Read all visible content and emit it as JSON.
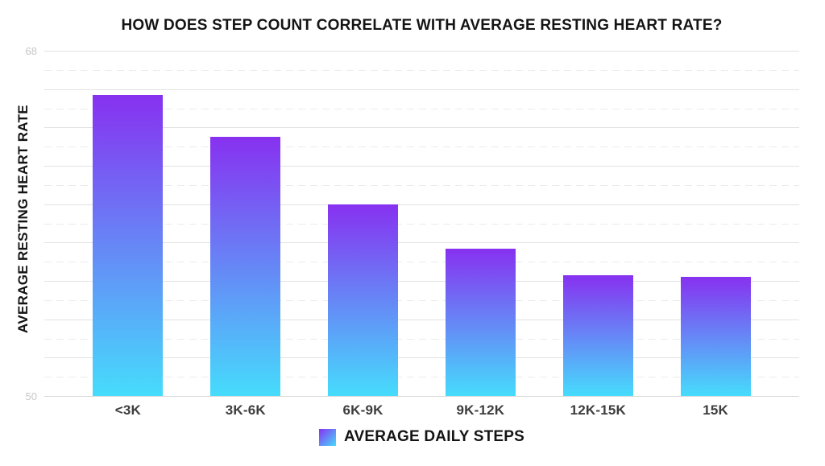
{
  "page": {
    "background": "#ffffff"
  },
  "header": {
    "title": "HOW DOES STEP COUNT CORRELATE WITH AVERAGE RESTING HEART RATE?"
  },
  "y_axis": {
    "label": "AVERAGE RESTING HEART RATE",
    "top_tick": "68",
    "bottom_tick": "50"
  },
  "legend": {
    "label": "AVERAGE DAILY STEPS",
    "swatch": "purple-to-cyan gradient square"
  },
  "colors": {
    "bar_gradient_top": "#8731f0",
    "bar_gradient_bottom": "#46dcfc",
    "grid_solid": "#e2e2e2",
    "grid_dashed": "#ebebeb",
    "baseline": "#d9d9d9",
    "y_tick_label": "#c6c6c6",
    "x_label": "#3d3d3d",
    "title_text": "#141414",
    "background": "#ffffff"
  },
  "chart_data": {
    "type": "bar",
    "title": "HOW DOES STEP COUNT CORRELATE WITH AVERAGE RESTING HEART RATE?",
    "categories": [
      "<3K",
      "3K-6K",
      "6K-9K",
      "9K-12K",
      "12K-15K",
      "15K"
    ],
    "values": [
      65.7,
      63.5,
      60,
      57.7,
      56.3,
      56.2
    ],
    "series_name": "AVERAGE DAILY STEPS",
    "xlabel": "AVERAGE DAILY STEPS",
    "ylabel": "AVERAGE RESTING HEART RATE",
    "ylim": [
      50,
      68
    ],
    "yticks_labeled": [
      68,
      50
    ],
    "gridlines": "horizontal every 1 unit: solid at even values, dashed at odd values",
    "grid": true,
    "legend_position": "bottom-center",
    "bar_style": "vertical gradient, purple #8731f0 at bar top to cyan #46dcfc at baseline"
  }
}
